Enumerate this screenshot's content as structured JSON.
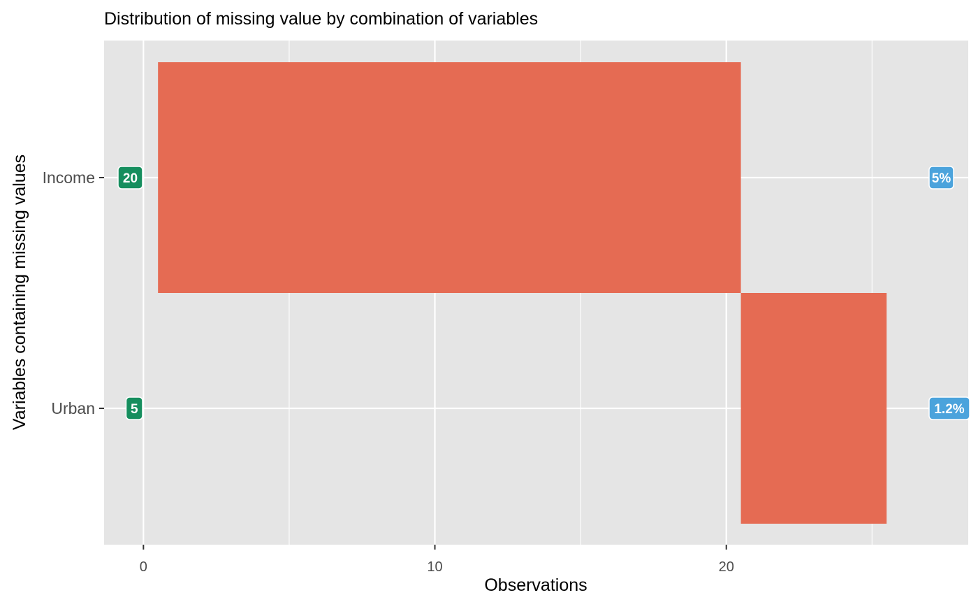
{
  "chart_data": {
    "type": "bar",
    "title": "Distribution of missing value by combination of variables",
    "xlabel": "Observations",
    "ylabel": "Variables containing missing values",
    "xlim": [
      -1.35,
      28.3
    ],
    "x_ticks": [
      0,
      10,
      20
    ],
    "x_minor_ticks": [
      5,
      15,
      25
    ],
    "categories": [
      "Income",
      "Urban"
    ],
    "bars": [
      {
        "variable": "Income",
        "start": 0.5,
        "end": 20.5,
        "count": 20,
        "count_label": "20",
        "percent_label": "5%"
      },
      {
        "variable": "Urban",
        "start": 20.5,
        "end": 25.5,
        "count": 5,
        "count_label": "5",
        "percent_label": "1.2%"
      }
    ],
    "grid": true,
    "legend": "none",
    "colors": {
      "panel": "#E5E5E5",
      "grid": "#FFFFFF",
      "bar": "#E56B53",
      "count_badge": "#168E5E",
      "percent_badge": "#4BA3DC",
      "badge_text": "#FFFFFF",
      "tick_text": "#4D4D4D",
      "title_text": "#000000"
    }
  }
}
